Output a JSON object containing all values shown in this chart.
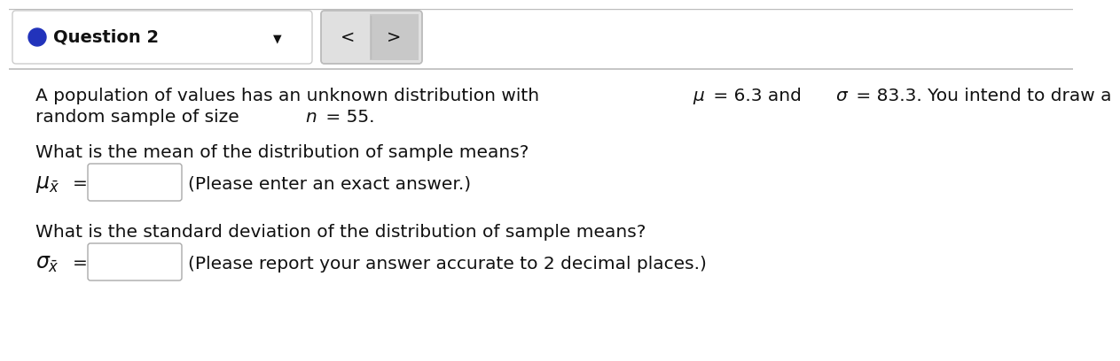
{
  "bg_color": "#ffffff",
  "header_border": "#cccccc",
  "title_text": "Question 2",
  "circle_color": "#2233bb",
  "nav_bg_left": "#e8e8e8",
  "nav_bg_right": "#d0d0d0",
  "nav_border": "#bbbbbb",
  "line1a": "A population of values has an unknown distribution with ",
  "line1b": "μ",
  "line1c": " = 6.3 and ",
  "line1d": "σ",
  "line1e": " = 83.3. You intend to draw a",
  "line2a": "random sample of size ",
  "line2b": "n",
  "line2c": " = 55.",
  "q1_label": "What is the mean of the distribution of sample means?",
  "mu_hint": "(Please enter an exact answer.)",
  "q2_label": "What is the standard deviation of the distribution of sample means?",
  "sigma_hint": "(Please report your answer accurate to 2 decimal places.)",
  "text_color": "#111111",
  "box_bg": "#ffffff",
  "box_border": "#aaaaaa",
  "separator_color": "#bbbbbb",
  "font_size_body": 14.5,
  "font_size_header": 14,
  "font_size_math_label": 16
}
